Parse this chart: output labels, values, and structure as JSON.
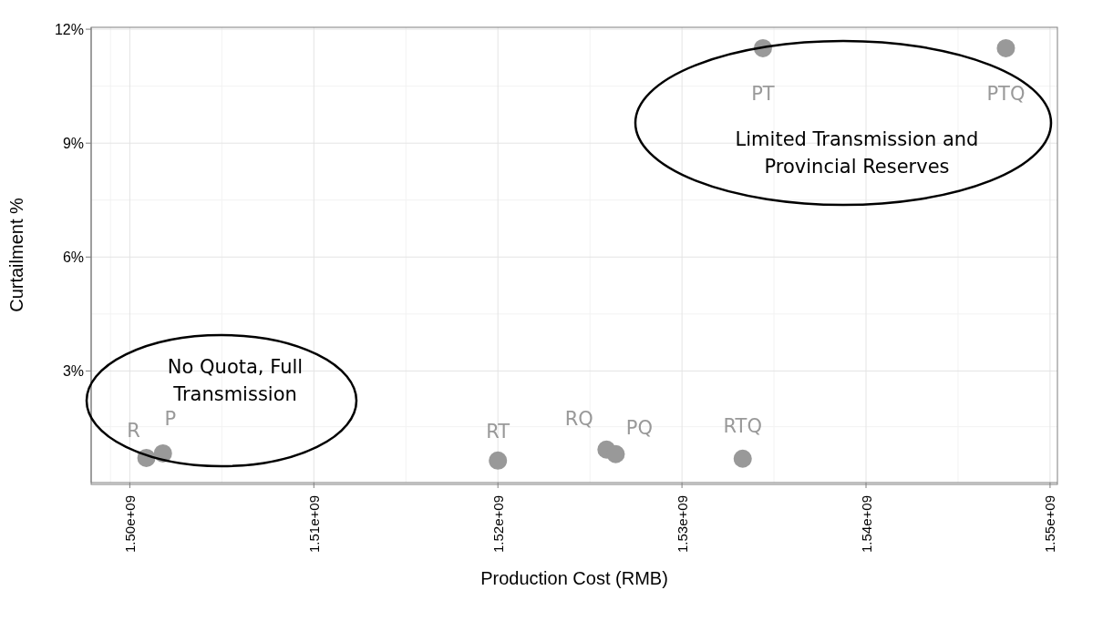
{
  "chart_data": {
    "type": "scatter",
    "xlabel": "Production Cost (RMB)",
    "ylabel": "Curtailment %",
    "x": [
      1500900000.0,
      1501800000.0,
      1520000000.0,
      1525900000.0,
      1526400000.0,
      1533300000.0,
      1534400000.0,
      1547600000.0
    ],
    "series": [
      {
        "color": "#999999",
        "values": [
          0.71,
          0.83,
          0.64,
          0.93,
          0.81,
          0.69,
          11.5,
          11.5
        ]
      }
    ],
    "xlim": [
      1497900000.0,
      1550400000.0
    ],
    "xticks": [
      {
        "value": 1500000000.0,
        "label": "1.50e+09"
      },
      {
        "value": 1510000000.0,
        "label": "1.51e+09"
      },
      {
        "value": 1520000000.0,
        "label": "1.52e+09"
      },
      {
        "value": 1530000000.0,
        "label": "1.53e+09"
      },
      {
        "value": 1540000000.0,
        "label": "1.54e+09"
      },
      {
        "value": 1550000000.0,
        "label": "1.55e+09"
      }
    ],
    "ylim": [
      0.06,
      12.05
    ],
    "yticks": [
      {
        "value": 3,
        "label": "3%"
      },
      {
        "value": 6,
        "label": "6%"
      },
      {
        "value": 9,
        "label": "9%"
      },
      {
        "value": 12,
        "label": "12%"
      }
    ],
    "grid": true,
    "marker": "circle",
    "legend": false,
    "annotations": [
      {
        "text": "R",
        "x": 1500900000.0,
        "y": 0.71
      },
      {
        "text": "P",
        "x": 1501800000.0,
        "y": 0.83
      },
      {
        "text": "RT",
        "x": 1520000000.0,
        "y": 0.64
      },
      {
        "text": "RQ",
        "x": 1525900000.0,
        "y": 0.93
      },
      {
        "text": "PQ",
        "x": 1526400000.0,
        "y": 0.81
      },
      {
        "text": "RTQ",
        "x": 1533300000.0,
        "y": 0.69
      },
      {
        "text": "PT",
        "x": 1534400000.0,
        "y": 11.5
      },
      {
        "text": "PTQ",
        "x": 1547600000.0,
        "y": 11.5
      },
      "No Quota, Full\nTransmission",
      "Limited Transmission and\nProvincial Reserves"
    ]
  }
}
